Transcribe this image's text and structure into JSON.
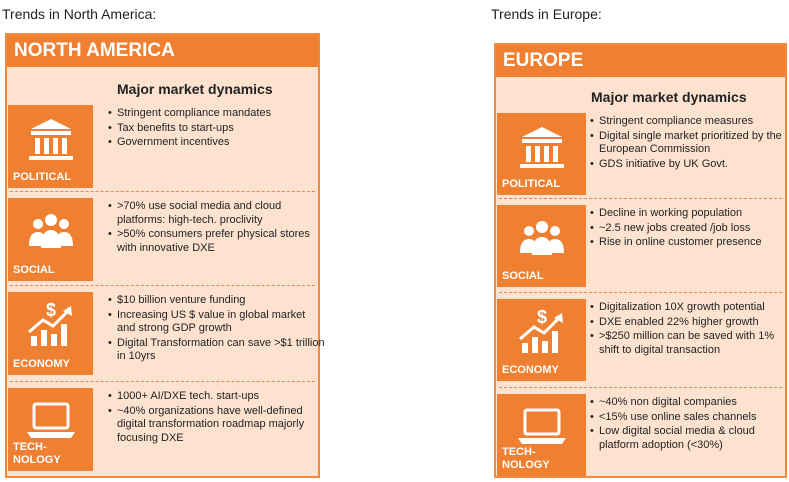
{
  "panels": [
    {
      "caption": "Trends in North America:",
      "title": "NORTH AMERICA",
      "heading": "Major market dynamics",
      "sections": [
        {
          "label": [
            "POLITICAL"
          ],
          "bullets": [
            "Stringent compliance mandates",
            "Tax benefits to start-ups",
            "Government incentives"
          ]
        },
        {
          "label": [
            "SOCIAL"
          ],
          "bullets": [
            ">70% use social media and cloud platforms: high-tech. proclivity",
            ">50% consumers prefer physical stores with innovative DXE"
          ]
        },
        {
          "label": [
            "ECONOMY"
          ],
          "bullets": [
            "$10 billion venture funding",
            "Increasing US $ value in global market and strong GDP growth",
            "Digital Transformation can save >$1 trillion in 10yrs"
          ]
        },
        {
          "label": [
            "TECH-",
            "NOLOGY"
          ],
          "bullets": [
            "1000+ AI/DXE tech. start-ups",
            "~40% organizations have well-defined digital transformation roadmap majorly focusing DXE"
          ]
        }
      ]
    },
    {
      "caption": "Trends in Europe:",
      "title": "EUROPE",
      "heading": "Major market dynamics",
      "sections": [
        {
          "label": [
            "POLITICAL"
          ],
          "bullets": [
            "Stringent compliance measures",
            "Digital single market prioritized by the European Commission",
            "GDS initiative by UK Govt."
          ]
        },
        {
          "label": [
            "SOCIAL"
          ],
          "bullets": [
            "Decline in working population",
            "~2.5 new jobs created /job loss",
            "Rise in online customer presence"
          ]
        },
        {
          "label": [
            "ECONOMY"
          ],
          "bullets": [
            "Digitalization 10X growth potential",
            "DXE enabled 22% higher growth",
            ">$250 million can be saved with 1% shift to digital transaction"
          ]
        },
        {
          "label": [
            "TECH-",
            "NOLOGY"
          ],
          "bullets": [
            "~40% non digital companies",
            "<15% use online sales channels",
            "Low digital social media & cloud platform adoption (<30%)"
          ]
        }
      ]
    }
  ]
}
